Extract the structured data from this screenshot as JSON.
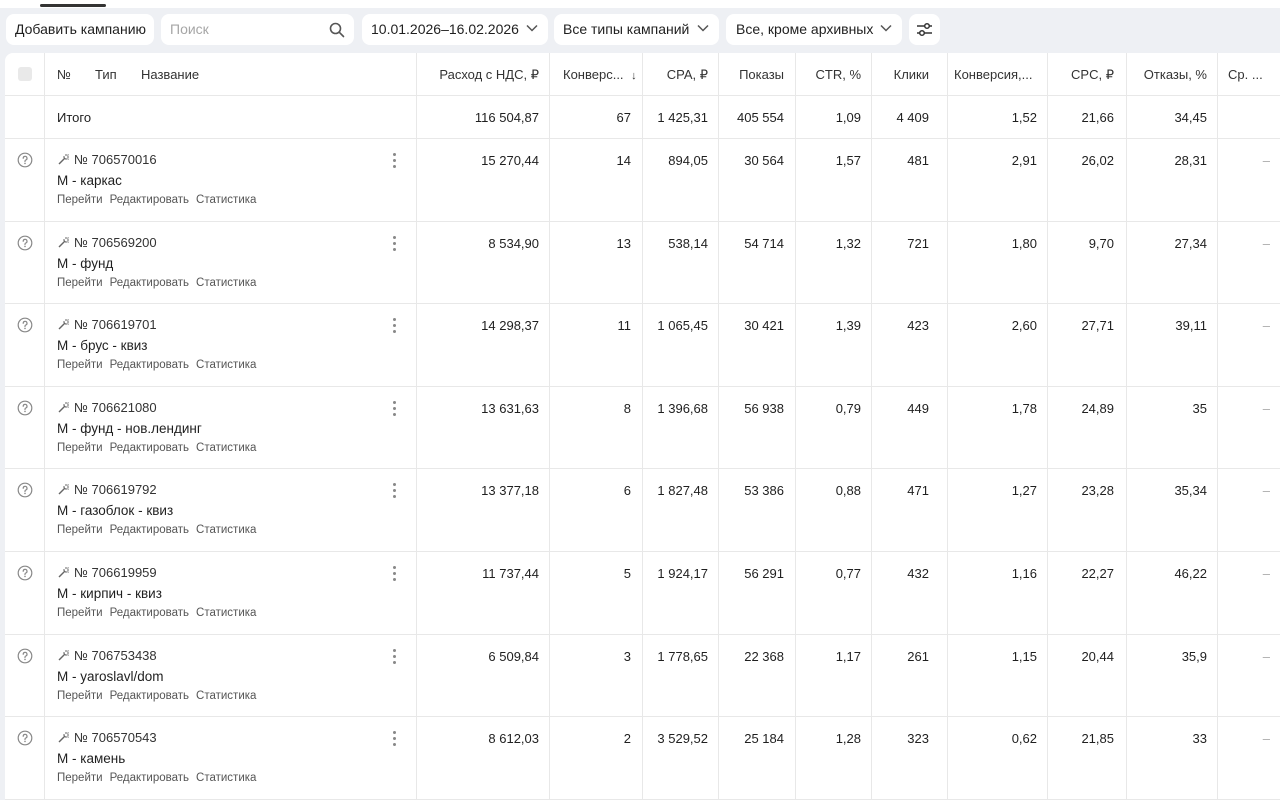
{
  "toolbar": {
    "add_campaign": "Добавить кампанию",
    "search_placeholder": "Поиск",
    "date_range": "10.01.2026–16.02.2026",
    "types_filter": "Все типы кампаний",
    "archive_filter": "Все, кроме архивных"
  },
  "table": {
    "headers": {
      "num": "№",
      "type": "Тип",
      "name": "Название",
      "spend": "Расход с НДС, ₽",
      "conversions": "Конверс...",
      "cpa": "CPA, ₽",
      "impressions": "Показы",
      "ctr": "CTR, %",
      "clicks": "Клики",
      "conv_rate": "Конверсия,...",
      "cpc": "CPC, ₽",
      "bounces": "Отказы, %",
      "extra": "Ср. ..."
    },
    "sort_indicator": "↓",
    "total": {
      "label": "Итого",
      "spend": "116 504,87",
      "conversions": "67",
      "cpa": "1 425,31",
      "impressions": "405 554",
      "ctr": "1,09",
      "clicks": "4 409",
      "conv_rate": "1,52",
      "cpc": "21,66",
      "bounces": "34,45"
    },
    "row_links": [
      "Перейти",
      "Редактировать",
      "Статистика"
    ],
    "rows": [
      {
        "id": "№ 706570016",
        "name": "М - каркас",
        "spend": "15 270,44",
        "conversions": "14",
        "cpa": "894,05",
        "impressions": "30 564",
        "ctr": "1,57",
        "clicks": "481",
        "conv_rate": "2,91",
        "cpc": "26,02",
        "bounces": "28,31",
        "extra": "–"
      },
      {
        "id": "№ 706569200",
        "name": "М - фунд",
        "spend": "8 534,90",
        "conversions": "13",
        "cpa": "538,14",
        "impressions": "54 714",
        "ctr": "1,32",
        "clicks": "721",
        "conv_rate": "1,80",
        "cpc": "9,70",
        "bounces": "27,34",
        "extra": "–"
      },
      {
        "id": "№ 706619701",
        "name": "М - брус - квиз",
        "spend": "14 298,37",
        "conversions": "11",
        "cpa": "1 065,45",
        "impressions": "30 421",
        "ctr": "1,39",
        "clicks": "423",
        "conv_rate": "2,60",
        "cpc": "27,71",
        "bounces": "39,11",
        "extra": "–"
      },
      {
        "id": "№ 706621080",
        "name": "М - фунд - нов.лендинг",
        "spend": "13 631,63",
        "conversions": "8",
        "cpa": "1 396,68",
        "impressions": "56 938",
        "ctr": "0,79",
        "clicks": "449",
        "conv_rate": "1,78",
        "cpc": "24,89",
        "bounces": "35",
        "extra": "–"
      },
      {
        "id": "№ 706619792",
        "name": "М - газоблок - квиз",
        "spend": "13 377,18",
        "conversions": "6",
        "cpa": "1 827,48",
        "impressions": "53 386",
        "ctr": "0,88",
        "clicks": "471",
        "conv_rate": "1,27",
        "cpc": "23,28",
        "bounces": "35,34",
        "extra": "–"
      },
      {
        "id": "№ 706619959",
        "name": "М - кирпич - квиз",
        "spend": "11 737,44",
        "conversions": "5",
        "cpa": "1 924,17",
        "impressions": "56 291",
        "ctr": "0,77",
        "clicks": "432",
        "conv_rate": "1,16",
        "cpc": "22,27",
        "bounces": "46,22",
        "extra": "–"
      },
      {
        "id": "№ 706753438",
        "name": "М - yaroslavl/dom",
        "spend": "6 509,84",
        "conversions": "3",
        "cpa": "1 778,65",
        "impressions": "22 368",
        "ctr": "1,17",
        "clicks": "261",
        "conv_rate": "1,15",
        "cpc": "20,44",
        "bounces": "35,9",
        "extra": "–"
      },
      {
        "id": "№ 706570543",
        "name": "М - камень",
        "spend": "8 612,03",
        "conversions": "2",
        "cpa": "3 529,52",
        "impressions": "25 184",
        "ctr": "1,28",
        "clicks": "323",
        "conv_rate": "0,62",
        "cpc": "21,85",
        "bounces": "33",
        "extra": "–"
      }
    ]
  },
  "icons": {
    "search": "search-icon",
    "chevron": "chevron-down-icon",
    "filter": "settings-sliders-icon",
    "status": "question-circle-icon",
    "campaign_type": "magic-wand-icon",
    "more": "kebab-menu-icon"
  }
}
